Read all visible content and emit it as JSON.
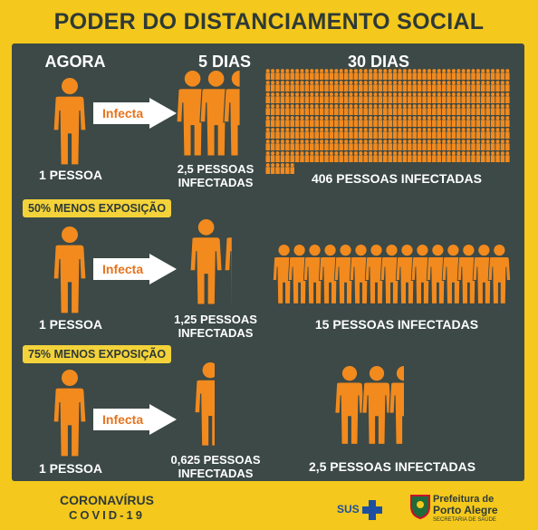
{
  "title": "PODER DO DISTANCIAMENTO SOCIAL",
  "headers": {
    "now": "AGORA",
    "five_days": "5 DIAS",
    "thirty_days": "30 DIAS"
  },
  "arrow_label": "Infecta",
  "rows": [
    {
      "badge": "",
      "origin": "1 PESSOA",
      "five_line1": "2,5 PESSOAS",
      "five_line2": "INFECTADAS",
      "thirty": "406 PESSOAS INFECTADAS",
      "five_count": 2.5,
      "thirty_count": 406
    },
    {
      "badge": "50% MENOS EXPOSIÇÃO",
      "origin": "1 PESSOA",
      "five_line1": "1,25 PESSOAS",
      "five_line2": "INFECTADAS",
      "thirty": "15 PESSOAS INFECTADAS",
      "five_count": 1.25,
      "thirty_count": 15
    },
    {
      "badge": "75% MENOS EXPOSIÇÃO",
      "origin": "1 PESSOA",
      "five_line1": "0,625 PESSOAS",
      "five_line2": "INFECTADAS",
      "thirty": "2,5 PESSOAS INFECTADAS",
      "five_count": 0.625,
      "thirty_count": 2.5
    }
  ],
  "footer": {
    "campaign_line1": "CORONAVÍRUS",
    "campaign_line2": "COVID-19",
    "sus": "SUS",
    "prefeitura_line1": "Prefeitura de",
    "prefeitura_line2": "Porto Alegre",
    "secretaria": "SECRETARIA DE SAÚDE"
  },
  "colors": {
    "figure": "#f28a1e",
    "panel": "#3c4946",
    "background": "#f4c81c",
    "badge": "#f4d33a"
  }
}
